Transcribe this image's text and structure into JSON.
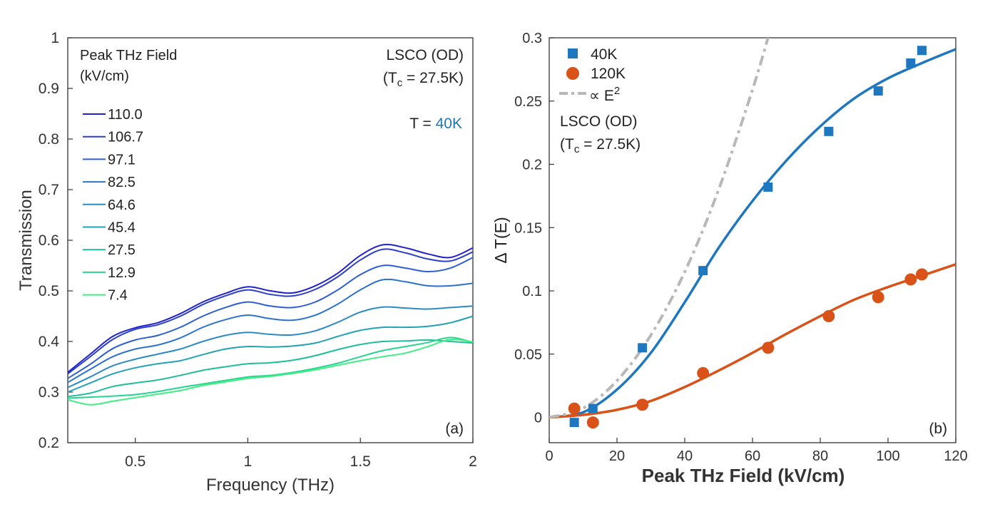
{
  "chart_data": [
    {
      "type": "line",
      "panel_label": "(a)",
      "xlabel": "Frequency (THz)",
      "ylabel": "Transmission",
      "xlim": [
        0.2,
        2.0
      ],
      "ylim": [
        0.2,
        1.0
      ],
      "xticks": [
        0.5,
        1,
        1.5,
        2
      ],
      "xtick_labels": [
        "0.5",
        "1",
        "1.5",
        "2"
      ],
      "yticks": [
        0.2,
        0.3,
        0.4,
        0.5,
        0.6,
        0.7,
        0.8,
        0.9,
        1.0
      ],
      "ytick_labels": [
        "0.2",
        "0.3",
        "0.4",
        "0.5",
        "0.6",
        "0.7",
        "0.8",
        "0.9",
        "1"
      ],
      "legend_title": [
        "Peak THz Field",
        "(kV/cm)"
      ],
      "annotation_material": "LSCO (OD)",
      "annotation_tc_open": "(T",
      "annotation_tc_sub": "c",
      "annotation_tc_rest": " = 27.5K)",
      "annotation_temp_label": "T = ",
      "annotation_temp_value": "40K",
      "annotation_temp_color": "#1f77b4",
      "x": [
        0.2,
        0.3,
        0.4,
        0.5,
        0.6,
        0.7,
        0.8,
        0.9,
        1.0,
        1.1,
        1.2,
        1.3,
        1.4,
        1.5,
        1.6,
        1.7,
        1.8,
        1.9,
        2.0
      ],
      "series": [
        {
          "name": "110.0",
          "color": "#2222cc",
          "values": [
            0.339,
            0.375,
            0.41,
            0.427,
            0.437,
            0.455,
            0.478,
            0.495,
            0.508,
            0.5,
            0.496,
            0.51,
            0.535,
            0.57,
            0.591,
            0.585,
            0.573,
            0.566,
            0.585
          ]
        },
        {
          "name": "106.7",
          "color": "#2a3fcc",
          "values": [
            0.336,
            0.37,
            0.404,
            0.424,
            0.433,
            0.45,
            0.473,
            0.49,
            0.502,
            0.493,
            0.49,
            0.503,
            0.528,
            0.561,
            0.582,
            0.575,
            0.563,
            0.559,
            0.577
          ]
        },
        {
          "name": "97.1",
          "color": "#2e5dd6",
          "values": [
            0.327,
            0.355,
            0.386,
            0.403,
            0.412,
            0.428,
            0.45,
            0.467,
            0.478,
            0.47,
            0.467,
            0.478,
            0.502,
            0.532,
            0.55,
            0.545,
            0.538,
            0.545,
            0.566
          ]
        },
        {
          "name": "82.5",
          "color": "#2b72d0",
          "values": [
            0.319,
            0.345,
            0.37,
            0.385,
            0.393,
            0.407,
            0.428,
            0.443,
            0.452,
            0.445,
            0.442,
            0.452,
            0.474,
            0.502,
            0.522,
            0.518,
            0.51,
            0.51,
            0.515
          ]
        },
        {
          "name": "64.6",
          "color": "#2b8ac4",
          "values": [
            0.309,
            0.33,
            0.352,
            0.365,
            0.375,
            0.385,
            0.4,
            0.412,
            0.418,
            0.414,
            0.413,
            0.421,
            0.438,
            0.458,
            0.468,
            0.466,
            0.464,
            0.467,
            0.47
          ]
        },
        {
          "name": "45.4",
          "color": "#23a3b5",
          "values": [
            0.3,
            0.318,
            0.336,
            0.348,
            0.356,
            0.362,
            0.374,
            0.385,
            0.39,
            0.389,
            0.391,
            0.397,
            0.41,
            0.422,
            0.428,
            0.428,
            0.43,
            0.437,
            0.45
          ]
        },
        {
          "name": "27.5",
          "color": "#1fbd9a",
          "values": [
            0.291,
            0.298,
            0.311,
            0.318,
            0.324,
            0.333,
            0.343,
            0.35,
            0.356,
            0.358,
            0.363,
            0.372,
            0.384,
            0.394,
            0.4,
            0.401,
            0.403,
            0.4,
            0.397
          ]
        },
        {
          "name": "12.9",
          "color": "#26d68f",
          "values": [
            0.288,
            0.29,
            0.292,
            0.295,
            0.301,
            0.309,
            0.316,
            0.323,
            0.33,
            0.333,
            0.339,
            0.347,
            0.357,
            0.37,
            0.382,
            0.39,
            0.398,
            0.408,
            0.398
          ]
        },
        {
          "name": "7.4",
          "color": "#3fef84",
          "values": [
            0.285,
            0.275,
            0.282,
            0.289,
            0.296,
            0.303,
            0.313,
            0.32,
            0.327,
            0.331,
            0.337,
            0.344,
            0.353,
            0.362,
            0.37,
            0.377,
            0.39,
            0.404,
            0.399
          ]
        }
      ]
    },
    {
      "type": "scatter",
      "panel_label": "(b)",
      "xlabel": "Peak THz Field (kV/cm)",
      "ylabel": "Δ T(E)",
      "xlim": [
        0,
        120
      ],
      "ylim": [
        -0.02,
        0.3
      ],
      "xticks": [
        0,
        20,
        40,
        60,
        80,
        100,
        120
      ],
      "xtick_labels": [
        "0",
        "20",
        "40",
        "60",
        "80",
        "100",
        "120"
      ],
      "yticks": [
        0,
        0.05,
        0.1,
        0.15,
        0.2,
        0.25,
        0.3
      ],
      "ytick_labels": [
        "0",
        "0.05",
        "0.1",
        "0.15",
        "0.2",
        "0.25",
        "0.3"
      ],
      "annotation_material": "LSCO (OD)",
      "annotation_tc_open": "(T",
      "annotation_tc_sub": "c",
      "annotation_tc_rest": " = 27.5K)",
      "series": [
        {
          "name": "40K",
          "marker": "square",
          "color": "#1f77c0",
          "x": [
            7.4,
            12.9,
            27.5,
            45.4,
            64.6,
            82.5,
            97.1,
            106.7,
            110.0
          ],
          "y": [
            -0.004,
            0.007,
            0.055,
            0.116,
            0.182,
            0.226,
            0.258,
            0.28,
            0.29
          ]
        },
        {
          "name": "120K",
          "marker": "circle",
          "color": "#d95319",
          "x": [
            7.4,
            12.9,
            27.5,
            45.4,
            64.6,
            82.5,
            97.1,
            106.7,
            110.0
          ],
          "y": [
            0.007,
            -0.004,
            0.01,
            0.035,
            0.055,
            0.08,
            0.095,
            0.109,
            0.113
          ]
        }
      ],
      "fits": [
        {
          "name": "40K fit",
          "color": "#1f77c0",
          "style": "solid",
          "x": [
            0,
            10,
            20,
            30,
            40,
            50,
            60,
            70,
            80,
            90,
            100,
            110,
            120
          ],
          "y": [
            0,
            0.004,
            0.022,
            0.051,
            0.091,
            0.134,
            0.171,
            0.203,
            0.23,
            0.252,
            0.268,
            0.28,
            0.291
          ]
        },
        {
          "name": "120K fit",
          "color": "#d95319",
          "style": "solid",
          "x": [
            0,
            10,
            20,
            30,
            40,
            50,
            60,
            70,
            80,
            90,
            100,
            110,
            120
          ],
          "y": [
            0,
            0.002,
            0.006,
            0.013,
            0.024,
            0.037,
            0.051,
            0.066,
            0.08,
            0.093,
            0.103,
            0.112,
            0.121
          ]
        },
        {
          "name": "∝ E",
          "name_sup": "2",
          "color": "#b8b8b8",
          "style": "dashdot",
          "x": [
            0,
            10,
            20,
            30,
            40,
            50,
            60,
            65
          ],
          "y": [
            0,
            0.0072,
            0.029,
            0.065,
            0.115,
            0.18,
            0.259,
            0.304
          ]
        }
      ]
    }
  ]
}
